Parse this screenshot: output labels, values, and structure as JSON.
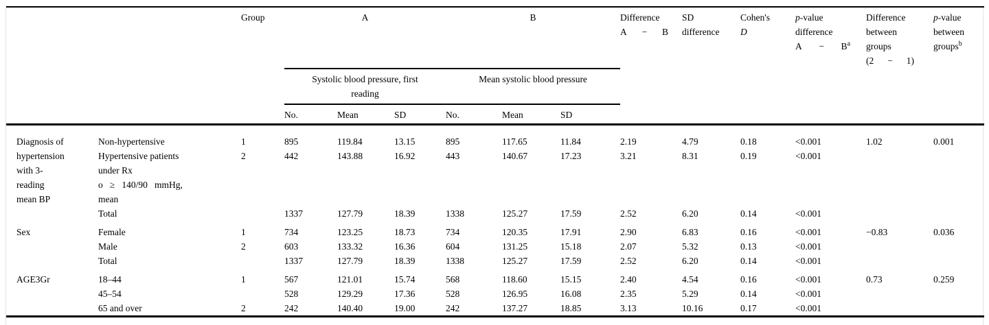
{
  "table": {
    "header": {
      "group": "Group",
      "a": "A",
      "b": "B",
      "a_spanner": "Systolic blood pressure, first\nreading",
      "b_spanner": "Mean systolic blood pressure",
      "no": "No.",
      "mean": "Mean",
      "sd": "SD",
      "difference": "Difference",
      "a_letter": "A",
      "minus": "−",
      "b_letter": "B",
      "sd_label": "SD",
      "difference_lc": "difference",
      "cohens": "Cohen's",
      "cohens_d": "D",
      "p_italic": "p",
      "p_rest": "-value",
      "between": "between",
      "groups": "groups",
      "paren_2": "(2",
      "paren_1": "1)",
      "sup_a": "a",
      "sup_b": "b"
    },
    "sections": [
      {
        "label": "Diagnosis of\nhypertension\nwith 3-\nreading\nmean BP",
        "rows": [
          {
            "category": "Non-hypertensive",
            "group": "1",
            "values": [
              "895",
              "119.84",
              "13.15",
              "895",
              "117.65",
              "11.84",
              "2.19",
              "4.79",
              "0.18",
              "<0.001",
              "1.02",
              "0.001"
            ]
          },
          {
            "category": "Hypertensive patients\nunder Rx\no   ≥   140/90   mmHg,\nmean",
            "group": "2",
            "values": [
              "442",
              "143.88",
              "16.92",
              "443",
              "140.67",
              "17.23",
              "3.21",
              "8.31",
              "0.19",
              "<0.001",
              "",
              ""
            ]
          },
          {
            "category": "Total",
            "group": "",
            "values": [
              "1337",
              "127.79",
              "18.39",
              "1338",
              "125.27",
              "17.59",
              "2.52",
              "6.20",
              "0.14",
              "<0.001",
              "",
              ""
            ]
          }
        ]
      },
      {
        "label": "Sex",
        "rows": [
          {
            "category": "Female",
            "group": "1",
            "values": [
              "734",
              "123.25",
              "18.73",
              "734",
              "120.35",
              "17.91",
              "2.90",
              "6.83",
              "0.16",
              "<0.001",
              "−0.83",
              "0.036"
            ]
          },
          {
            "category": "Male",
            "group": "2",
            "values": [
              "603",
              "133.32",
              "16.36",
              "604",
              "131.25",
              "15.18",
              "2.07",
              "5.32",
              "0.13",
              "<0.001",
              "",
              ""
            ]
          },
          {
            "category": "Total",
            "group": "",
            "values": [
              "1337",
              "127.79",
              "18.39",
              "1338",
              "125.27",
              "17.59",
              "2.52",
              "6.20",
              "0.14",
              "<0.001",
              "",
              ""
            ]
          }
        ]
      },
      {
        "label": "AGE3Gr",
        "rows": [
          {
            "category": "18–44",
            "group": "1",
            "values": [
              "567",
              "121.01",
              "15.74",
              "568",
              "118.60",
              "15.15",
              "2.40",
              "4.54",
              "0.16",
              "<0.001",
              "0.73",
              "0.259"
            ]
          },
          {
            "category": "45–54",
            "group": "",
            "values": [
              "528",
              "129.29",
              "17.36",
              "528",
              "126.95",
              "16.08",
              "2.35",
              "5.29",
              "0.14",
              "<0.001",
              "",
              ""
            ]
          },
          {
            "category": "65 and over",
            "group": "2",
            "values": [
              "242",
              "140.40",
              "19.00",
              "242",
              "137.27",
              "18.85",
              "3.13",
              "10.16",
              "0.17",
              "<0.001",
              "",
              ""
            ]
          }
        ]
      }
    ]
  }
}
